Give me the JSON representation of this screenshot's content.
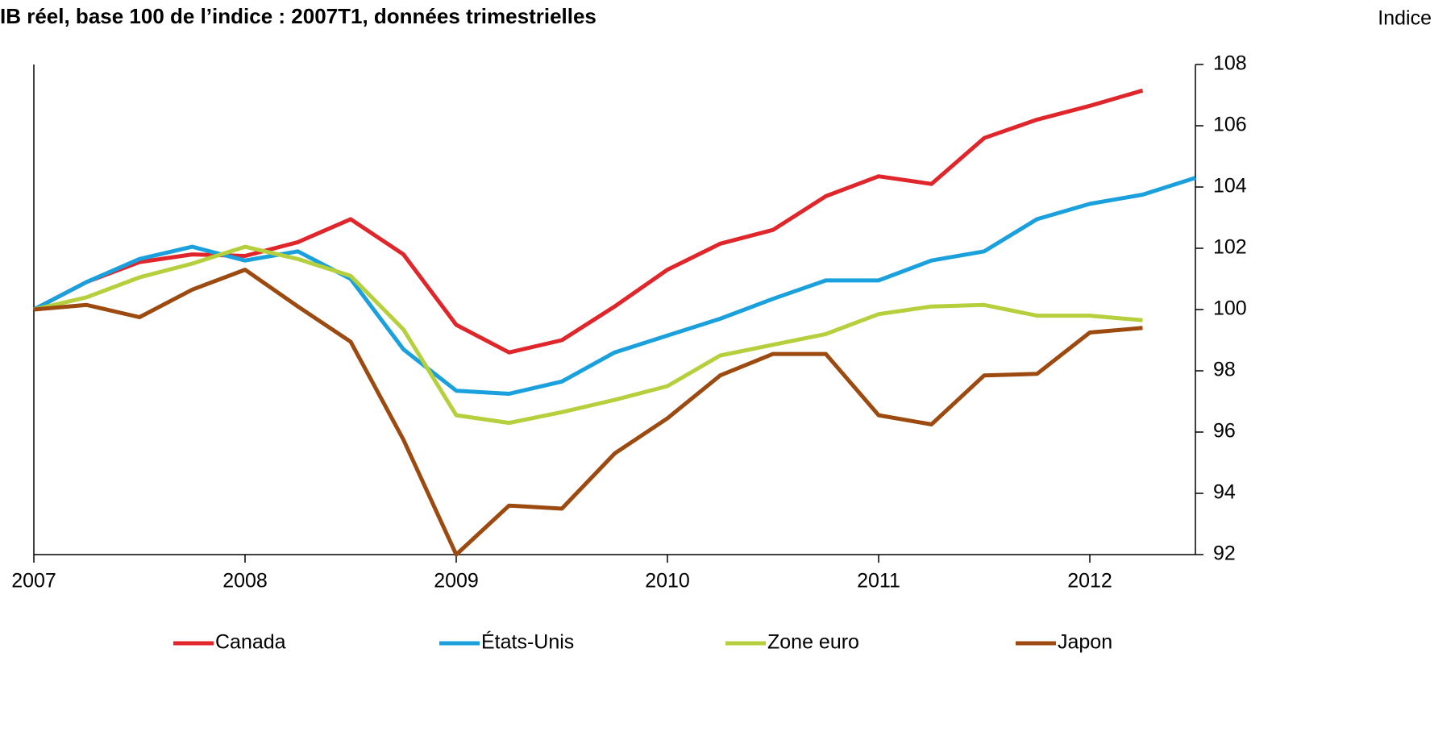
{
  "chart_data": {
    "type": "line",
    "title": "IB réel, base 100 de l’indice : 2007T1, données trimestrielles",
    "y_axis_label": "Indice",
    "x": [
      2007,
      2007.25,
      2007.5,
      2007.75,
      2008,
      2008.25,
      2008.5,
      2008.75,
      2009,
      2009.25,
      2009.5,
      2009.75,
      2010,
      2010.25,
      2010.5,
      2010.75,
      2011,
      2011.25,
      2011.5,
      2011.75,
      2012,
      2012.25,
      2012.5
    ],
    "xlim": [
      2007,
      2012.5
    ],
    "xticks": [
      2007,
      2008,
      2009,
      2010,
      2011,
      2012
    ],
    "ylim": [
      92,
      108
    ],
    "yticks": [
      92,
      94,
      96,
      98,
      100,
      102,
      104,
      106,
      108
    ],
    "y_axis_side": "right",
    "legend": "bottom",
    "series": [
      {
        "name": "Canada",
        "color": "#e0262a",
        "values": [
          100,
          100.9,
          101.55,
          101.8,
          101.75,
          102.2,
          102.95,
          101.8,
          99.5,
          98.6,
          99.0,
          100.1,
          101.3,
          102.15,
          102.6,
          103.7,
          104.35,
          104.1,
          105.6,
          106.2,
          106.65,
          107.15,
          null
        ]
      },
      {
        "name": "États-Unis",
        "color": "#1aa0dc",
        "values": [
          100,
          100.9,
          101.65,
          102.05,
          101.6,
          101.9,
          101.0,
          98.7,
          97.35,
          97.25,
          97.65,
          98.6,
          99.15,
          99.7,
          100.35,
          100.95,
          100.95,
          101.6,
          101.9,
          102.95,
          103.45,
          103.75,
          104.3
        ]
      },
      {
        "name": "Zone euro",
        "color": "#b5cf3d",
        "values": [
          100,
          100.4,
          101.05,
          101.5,
          102.05,
          101.65,
          101.1,
          99.35,
          96.55,
          96.3,
          96.65,
          97.05,
          97.5,
          98.5,
          98.85,
          99.2,
          99.85,
          100.1,
          100.15,
          99.8,
          99.8,
          99.65,
          null
        ]
      },
      {
        "name": "Japon",
        "color": "#9c4a0f",
        "values": [
          100,
          100.15,
          99.75,
          100.65,
          101.3,
          100.1,
          98.95,
          95.75,
          92.0,
          93.6,
          93.5,
          95.3,
          96.45,
          97.85,
          98.55,
          98.55,
          96.55,
          96.25,
          97.85,
          97.9,
          99.25,
          99.4,
          null
        ]
      }
    ]
  }
}
